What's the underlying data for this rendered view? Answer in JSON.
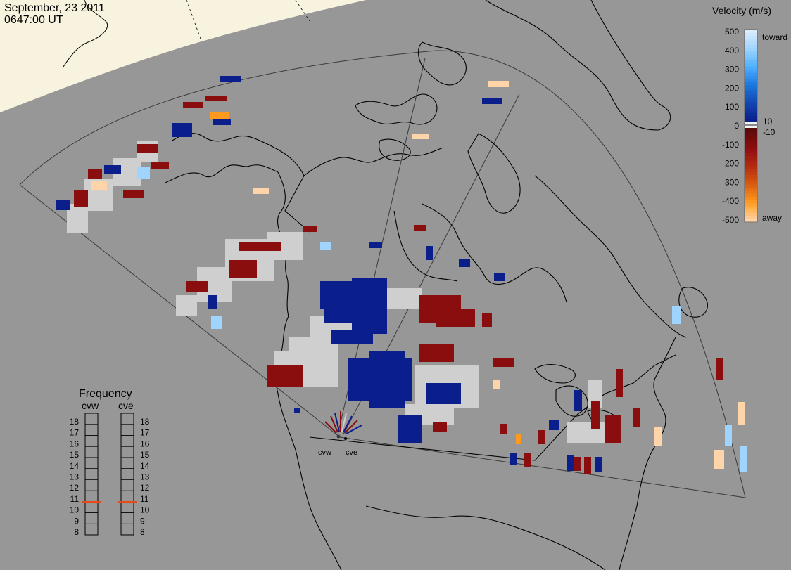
{
  "header": {
    "date": "September, 23 2011",
    "time": "0647:00 UT"
  },
  "legend": {
    "title": "Velocity (m/s)",
    "ticks": [
      "500",
      "400",
      "300",
      "200",
      "100",
      "0",
      "-100",
      "-200",
      "-300",
      "-400",
      "-500"
    ],
    "label_toward": "toward",
    "label_away": "away",
    "label_plus10": "10",
    "label_minus10": "-10",
    "colors": {
      "toward": [
        "#d9ecff",
        "#9fd4ff",
        "#4fb0ff",
        "#1b78e0",
        "#1247b0",
        "#0a1e8c"
      ],
      "away": [
        "#5a0a0a",
        "#8b0e0e",
        "#b32a12",
        "#d85a10",
        "#ff9a1e",
        "#ffd4a8"
      ],
      "ground_scatter": "#cfcfcf"
    }
  },
  "frequency_panel": {
    "title": "Frequency",
    "radar_left": "cvw",
    "radar_right": "cve",
    "ticks": [
      "18",
      "17",
      "16",
      "15",
      "14",
      "13",
      "12",
      "11",
      "10",
      "9",
      "8"
    ],
    "cvw_frequency_mhz": 10.9,
    "cve_frequency_mhz": 10.9,
    "marker_color": "#e64a19"
  },
  "map": {
    "site_labels": [
      "cvw",
      "cve"
    ],
    "land_color": "#979797",
    "daylight_color": "#f7f3df",
    "coast_color": "#000000"
  }
}
